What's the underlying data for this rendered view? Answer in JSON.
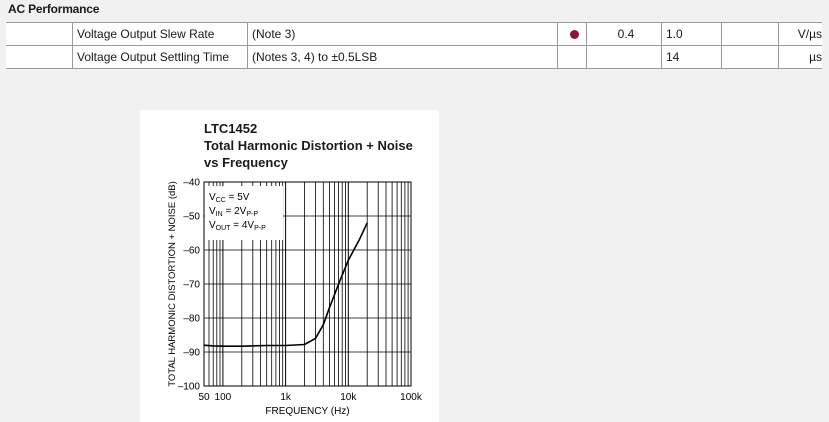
{
  "section": {
    "title": "AC Performance"
  },
  "table": {
    "rows": [
      {
        "parameter": "Voltage Output Slew Rate",
        "conditions": "(Note 3)",
        "min": "0.4",
        "typ": "1.0",
        "max": "",
        "units": "V/µs"
      },
      {
        "parameter": "Voltage Output Settling Time",
        "conditions": "(Notes 3, 4) to ±0.5LSB",
        "min": "",
        "typ": "14",
        "max": "",
        "units": "µs"
      }
    ]
  },
  "chart_title": {
    "line1": "LTC1452",
    "line2": "Total Harmonic Distortion + Noise",
    "line3": "vs Frequency"
  },
  "chart_data": {
    "type": "line",
    "title": "Total Harmonic Distortion + Noise vs Frequency",
    "xlabel": "FREQUENCY (Hz)",
    "ylabel": "TOTAL HARMONIC DISTORTION + NOISE (dB)",
    "xscale": "log",
    "xlim": [
      50,
      100000
    ],
    "ylim": [
      -100,
      -40
    ],
    "x_ticks": [
      {
        "value": 50,
        "label": "50"
      },
      {
        "value": 100,
        "label": "100"
      },
      {
        "value": 1000,
        "label": "1k"
      },
      {
        "value": 10000,
        "label": "10k"
      },
      {
        "value": 100000,
        "label": "100k"
      }
    ],
    "y_ticks": [
      {
        "value": -40,
        "label": "–40"
      },
      {
        "value": -50,
        "label": "–50"
      },
      {
        "value": -60,
        "label": "–60"
      },
      {
        "value": -70,
        "label": "–70"
      },
      {
        "value": -80,
        "label": "–80"
      },
      {
        "value": -90,
        "label": "–90"
      },
      {
        "value": -100,
        "label": "–100"
      }
    ],
    "grid": true,
    "annotation_lines": [
      {
        "main": "V",
        "sub": "CC",
        "suffix": " = 5V"
      },
      {
        "main": "V",
        "sub": "IN",
        "suffix": " = 2V",
        "sub2": "P-P"
      },
      {
        "main": "V",
        "sub": "OUT",
        "suffix": " = 4V",
        "sub2": "P-P"
      }
    ],
    "series": [
      {
        "points": [
          [
            50,
            -88
          ],
          [
            70,
            -88.2
          ],
          [
            100,
            -88.3
          ],
          [
            200,
            -88.3
          ],
          [
            500,
            -88.1
          ],
          [
            1000,
            -88.1
          ],
          [
            2000,
            -87.8
          ],
          [
            3000,
            -86
          ],
          [
            4000,
            -82
          ],
          [
            5000,
            -77
          ],
          [
            7000,
            -70
          ],
          [
            10000,
            -63
          ],
          [
            15000,
            -57
          ],
          [
            20000,
            -52
          ]
        ]
      }
    ]
  }
}
